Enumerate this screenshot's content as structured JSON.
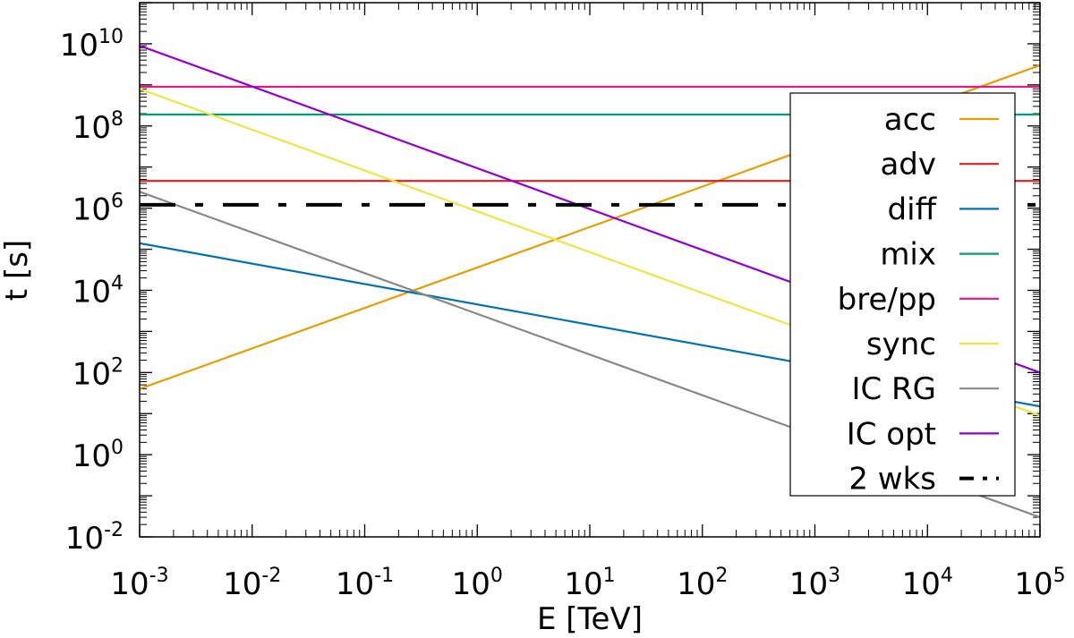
{
  "chart_data": {
    "type": "line",
    "title": "",
    "xlabel": "E [TeV]",
    "ylabel": "t [s]",
    "x_scale": "log",
    "y_scale": "log",
    "xlim": [
      0.001,
      100000
    ],
    "ylim": [
      0.01,
      100000000000
    ],
    "x_ticks": [
      {
        "base": "10",
        "exp": "-3"
      },
      {
        "base": "10",
        "exp": "-2"
      },
      {
        "base": "10",
        "exp": "-1"
      },
      {
        "base": "10",
        "exp": "0"
      },
      {
        "base": "10",
        "exp": "1"
      },
      {
        "base": "10",
        "exp": "2"
      },
      {
        "base": "10",
        "exp": "3"
      },
      {
        "base": "10",
        "exp": "4"
      },
      {
        "base": "10",
        "exp": "5"
      }
    ],
    "y_ticks": [
      {
        "base": "10",
        "exp": "-2"
      },
      {
        "base": "10",
        "exp": "0"
      },
      {
        "base": "10",
        "exp": "2"
      },
      {
        "base": "10",
        "exp": "4"
      },
      {
        "base": "10",
        "exp": "6"
      },
      {
        "base": "10",
        "exp": "8"
      },
      {
        "base": "10",
        "exp": "10"
      }
    ],
    "grid": false,
    "legend_position": "right",
    "series": [
      {
        "name": "acc",
        "color": "#e69f00",
        "dash": "solid",
        "x": [
          0.001,
          100000
        ],
        "y": [
          40,
          3000000000
        ]
      },
      {
        "name": "adv",
        "color": "#e41a1c",
        "dash": "solid",
        "x": [
          0.001,
          100000
        ],
        "y": [
          4600000,
          4600000
        ]
      },
      {
        "name": "diff",
        "color": "#0072b2",
        "dash": "solid",
        "x": [
          0.001,
          100000
        ],
        "y": [
          140000,
          15
        ]
      },
      {
        "name": "mix",
        "color": "#009e73",
        "dash": "solid",
        "x": [
          0.001,
          100000
        ],
        "y": [
          190000000,
          190000000
        ]
      },
      {
        "name": "bre/pp",
        "color": "#ee1188",
        "dash": "solid",
        "x": [
          0.001,
          100000
        ],
        "y": [
          900000000,
          900000000
        ]
      },
      {
        "name": "sync",
        "color": "#f0e442",
        "dash": "solid",
        "x": [
          0.001,
          100000
        ],
        "y": [
          800000000,
          9
        ]
      },
      {
        "name": "IC RG",
        "color": "#888888",
        "dash": "solid",
        "x": [
          0.001,
          100000
        ],
        "y": [
          2500000,
          0.03
        ]
      },
      {
        "name": "IC opt",
        "color": "#9400d3",
        "dash": "solid",
        "x": [
          0.001,
          100000
        ],
        "y": [
          9000000000,
          100
        ]
      },
      {
        "name": "2 wks",
        "color": "#000000",
        "dash": "dashdot",
        "x": [
          0.001,
          100000
        ],
        "y": [
          1209600,
          1209600
        ]
      }
    ]
  }
}
